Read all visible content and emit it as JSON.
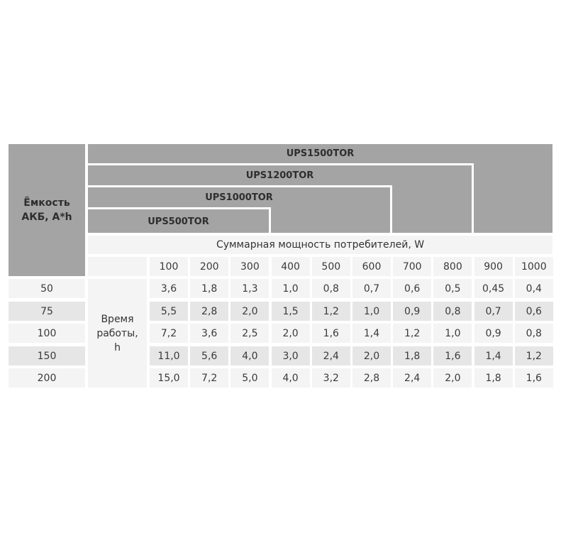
{
  "chart_data": {
    "type": "table",
    "row_header_label": "Ёмкость АКБ, A*h",
    "models": [
      "UPS1500TOR",
      "UPS1200TOR",
      "UPS1000TOR",
      "UPS500TOR"
    ],
    "power_header": "Суммарная мощность потребителей, W",
    "runtime_label": "Время работы, h",
    "columns": [
      "100",
      "200",
      "300",
      "400",
      "500",
      "600",
      "700",
      "800",
      "900",
      "1000"
    ],
    "rows": [
      {
        "capacity": "50",
        "values": [
          "3,6",
          "1,8",
          "1,3",
          "1,0",
          "0,8",
          "0,7",
          "0,6",
          "0,5",
          "0,45",
          "0,4"
        ]
      },
      {
        "capacity": "75",
        "values": [
          "5,5",
          "2,8",
          "2,0",
          "1,5",
          "1,2",
          "1,0",
          "0,9",
          "0,8",
          "0,7",
          "0,6"
        ]
      },
      {
        "capacity": "100",
        "values": [
          "7,2",
          "3,6",
          "2,5",
          "2,0",
          "1,6",
          "1,4",
          "1,2",
          "1,0",
          "0,9",
          "0,8"
        ]
      },
      {
        "capacity": "150",
        "values": [
          "11,0",
          "5,6",
          "4,0",
          "3,0",
          "2,4",
          "2,0",
          "1,8",
          "1,6",
          "1,4",
          "1,2"
        ]
      },
      {
        "capacity": "200",
        "values": [
          "15,0",
          "7,2",
          "5,0",
          "4,0",
          "3,2",
          "2,8",
          "2,4",
          "2,0",
          "1,8",
          "1,6"
        ]
      }
    ]
  },
  "colors": {
    "header_grey": "#a4a4a4",
    "cell_light": "#f4f4f4",
    "cell_alt": "#e6e6e6"
  }
}
